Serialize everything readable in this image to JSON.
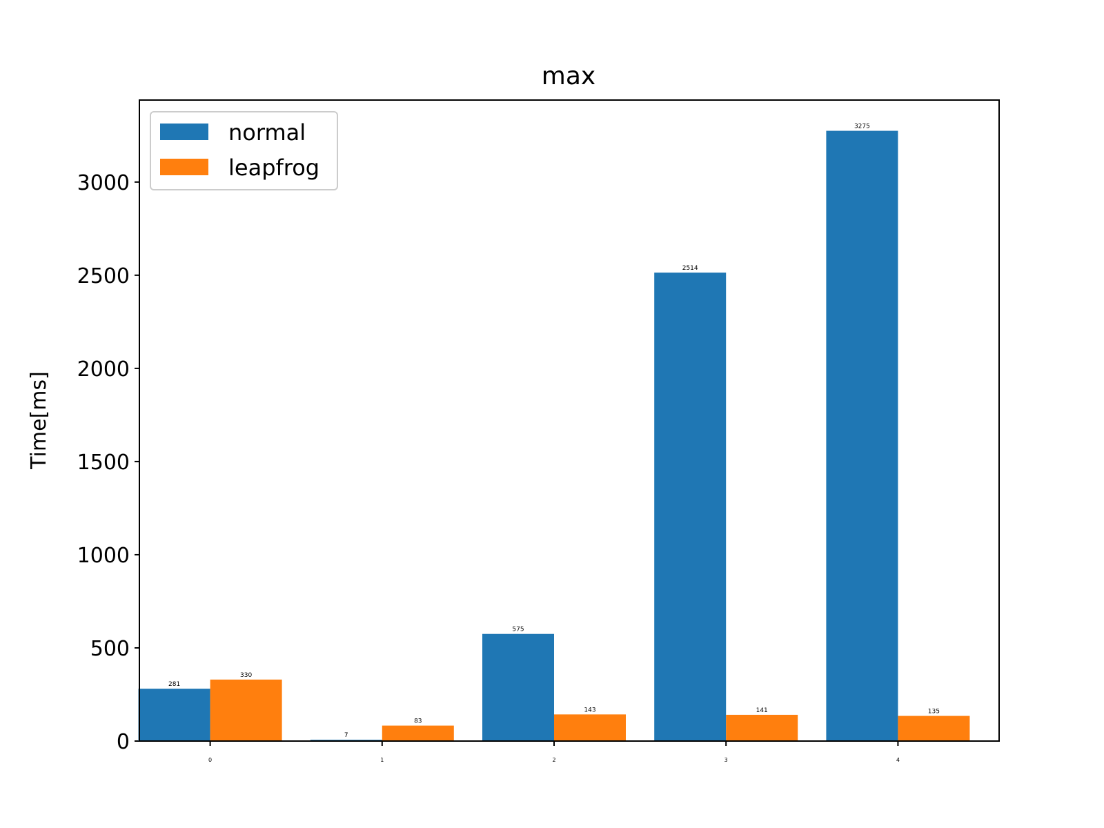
{
  "chart_data": {
    "type": "bar",
    "title": "max",
    "xlabel": "",
    "ylabel": "Time[ms]",
    "categories": [
      "0",
      "1",
      "2",
      "3",
      "4"
    ],
    "series": [
      {
        "name": "normal",
        "color": "#1f77b4",
        "values": [
          281,
          7,
          575,
          2514,
          3275
        ]
      },
      {
        "name": "leapfrog",
        "color": "#ff7f0e",
        "values": [
          330,
          83,
          143,
          141,
          135
        ]
      }
    ],
    "yticks": [
      0,
      500,
      1000,
      1500,
      2000,
      2500,
      3000
    ],
    "ylim": [
      0,
      3440
    ],
    "grid": false,
    "legend": "top-left"
  }
}
